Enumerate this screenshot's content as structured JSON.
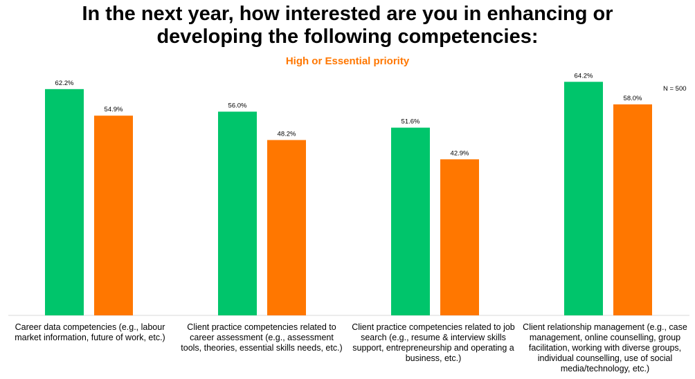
{
  "title_line1": "In the next year, how interested are you in enhancing or",
  "title_line2": "developing the following competencies:",
  "subtitle": "High or Essential priority",
  "note": "N = 500",
  "colors": {
    "series1": "#00c56b",
    "series2": "#ff7700"
  },
  "chart_data": {
    "type": "bar",
    "title": "In the next year, how interested are you in enhancing or developing the following competencies:",
    "subtitle": "High or Essential priority",
    "categories": [
      "Career data competencies (e.g., labour market information, future of work, etc.)",
      "Client practice competencies related to career assessment (e.g., assessment tools, theories, essential skills needs, etc.)",
      "Client practice competencies related to job search (e.g., resume & interview skills support, entrepreneurship and operating a business, etc.)",
      "Client relationship management (e.g., case management, online counselling, group facilitation, working with diverse groups, individual counselling, use of social media/technology, etc.)"
    ],
    "series": [
      {
        "values": [
          62.2,
          56.0,
          51.6,
          64.2
        ],
        "labels": [
          "62.2%",
          "56.0%",
          "51.6%",
          "64.2%"
        ]
      },
      {
        "values": [
          54.9,
          48.2,
          42.9,
          58.0
        ],
        "labels": [
          "54.9%",
          "48.2%",
          "42.9%",
          "58.0%"
        ]
      }
    ],
    "ylim": [
      0,
      70
    ],
    "grid": false,
    "legend": "none"
  }
}
